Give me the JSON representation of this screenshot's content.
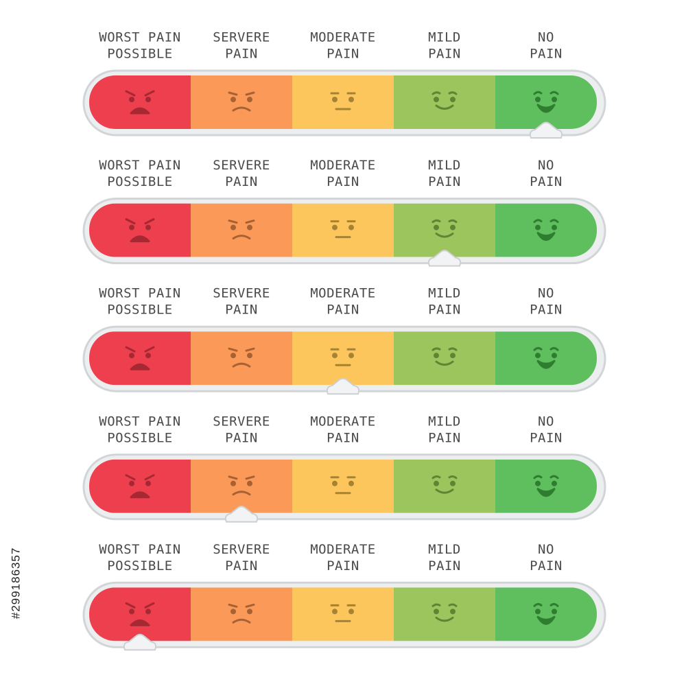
{
  "levels": [
    {
      "lines": [
        "WORST PAIN",
        "POSSIBLE"
      ],
      "color": "#ee3f4f",
      "face": "#a52833",
      "mood": 0
    },
    {
      "lines": [
        "SERVERE",
        "PAIN"
      ],
      "color": "#fb9a58",
      "face": "#a86133",
      "mood": 1
    },
    {
      "lines": [
        "MODERATE",
        "PAIN"
      ],
      "color": "#fcc65d",
      "face": "#a68233",
      "mood": 2
    },
    {
      "lines": [
        "MILD",
        "PAIN"
      ],
      "color": "#9cc65d",
      "face": "#5f8433",
      "mood": 3
    },
    {
      "lines": [
        "NO",
        "PAIN"
      ],
      "color": "#5fbf5f",
      "face": "#2f7d2f",
      "mood": 4
    }
  ],
  "scales": [
    {
      "selected": 4
    },
    {
      "selected": 3
    },
    {
      "selected": 2
    },
    {
      "selected": 1
    },
    {
      "selected": 0
    }
  ],
  "watermark": "#299186357"
}
